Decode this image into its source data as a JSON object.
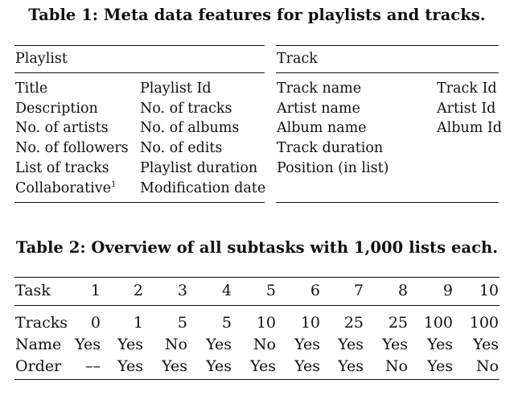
{
  "table1": {
    "caption": "Table 1: Meta data features for playlists and tracks.",
    "playlist": {
      "header": "Playlist",
      "col1": [
        "Title",
        "Description",
        "No. of artists",
        "No. of followers",
        "List of tracks",
        "Collaborative"
      ],
      "col1_footnote": "1",
      "col2": [
        "Playlist Id",
        "No. of tracks",
        "No. of albums",
        "No. of edits",
        "Playlist duration",
        "Modification date"
      ]
    },
    "track": {
      "header": "Track",
      "col1": [
        "Track name",
        "Artist name",
        "Album name",
        "Track duration",
        "Position (in list)"
      ],
      "col2": [
        "Track Id",
        "Artist Id",
        "Album Id"
      ]
    }
  },
  "table2": {
    "caption": "Table 2: Overview of all subtasks with 1,000 lists each.",
    "header_label": "Task",
    "tasks": [
      "1",
      "2",
      "3",
      "4",
      "5",
      "6",
      "7",
      "8",
      "9",
      "10"
    ],
    "rows": [
      {
        "label": "Tracks",
        "values": [
          "0",
          "1",
          "5",
          "5",
          "10",
          "10",
          "25",
          "25",
          "100",
          "100"
        ]
      },
      {
        "label": "Name",
        "values": [
          "Yes",
          "Yes",
          "No",
          "Yes",
          "No",
          "Yes",
          "Yes",
          "Yes",
          "Yes",
          "Yes"
        ]
      },
      {
        "label": "Order",
        "values": [
          "––",
          "Yes",
          "Yes",
          "Yes",
          "Yes",
          "Yes",
          "Yes",
          "No",
          "Yes",
          "No"
        ]
      }
    ]
  }
}
